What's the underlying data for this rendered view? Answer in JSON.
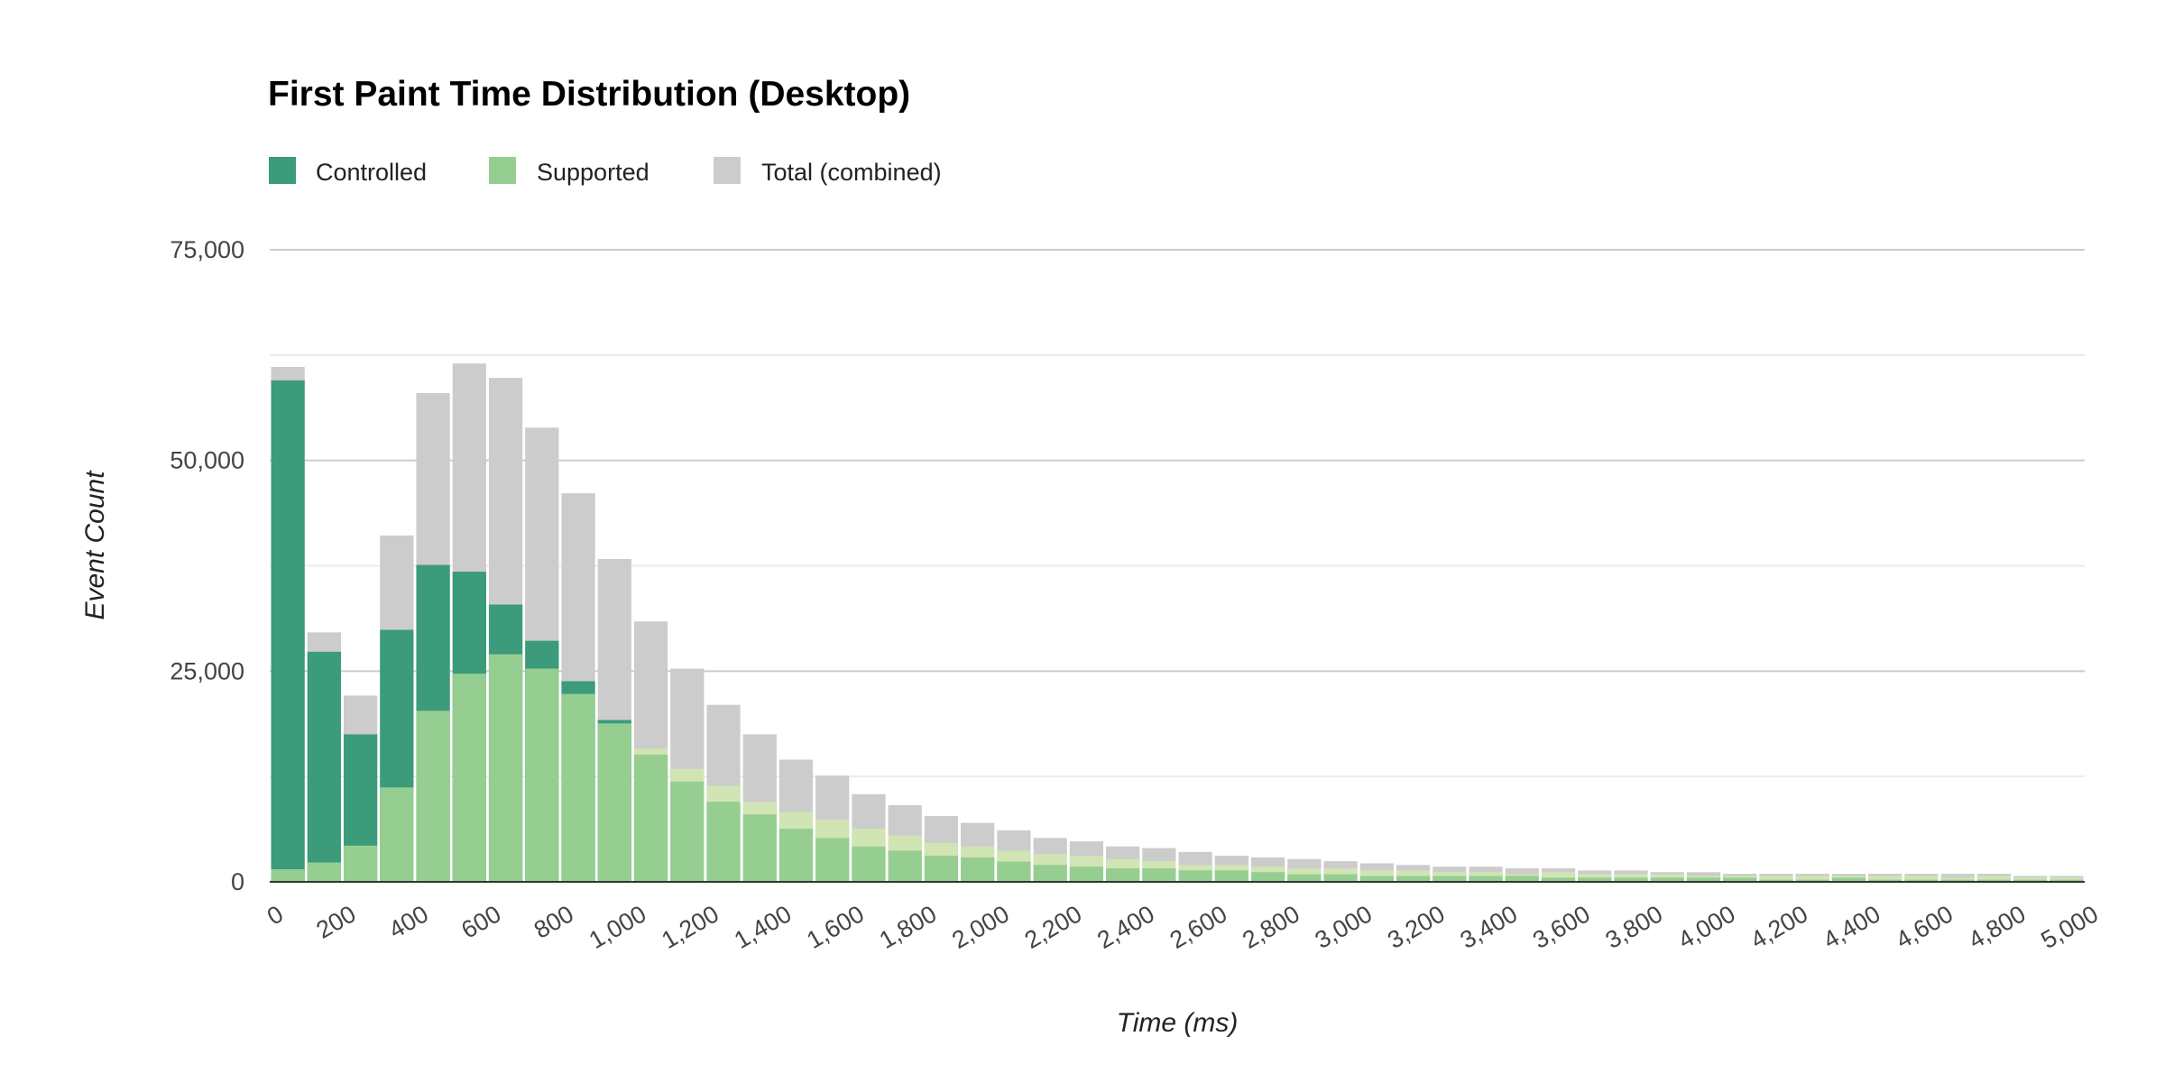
{
  "chart_data": {
    "type": "bar",
    "mode": "overlapping",
    "title": "First Paint Time Distribution (Desktop)",
    "xlabel": "Time (ms)",
    "ylabel": "Event Count",
    "bin_width": 100,
    "xlim": [
      0,
      5000
    ],
    "ylim": [
      0,
      75000
    ],
    "x_ticks": [
      "0",
      "200",
      "400",
      "600",
      "800",
      "1,000",
      "1,200",
      "1,400",
      "1,600",
      "1,800",
      "2,000",
      "2,200",
      "2,400",
      "2,600",
      "2,800",
      "3,000",
      "3,200",
      "3,400",
      "3,600",
      "3,800",
      "4,000",
      "4,200",
      "4,400",
      "4,600",
      "4,800",
      "5,000"
    ],
    "y_ticks": [
      "0",
      "25,000",
      "50,000",
      "75,000"
    ],
    "y_tick_values": [
      0,
      25000,
      50000,
      75000
    ],
    "grid": true,
    "legend_position": "top-left",
    "colors": {
      "controlled": "#3b9b7b",
      "supported": "#96ce91",
      "total": "#cccccc",
      "pale": "#d1e4b4"
    },
    "legend": [
      "Controlled",
      "Supported",
      "Total (combined)"
    ],
    "x": [
      0,
      100,
      200,
      300,
      400,
      500,
      600,
      700,
      800,
      900,
      1000,
      1100,
      1200,
      1300,
      1400,
      1500,
      1600,
      1700,
      1800,
      1900,
      2000,
      2100,
      2200,
      2300,
      2400,
      2500,
      2600,
      2700,
      2800,
      2900,
      3000,
      3100,
      3200,
      3300,
      3400,
      3500,
      3600,
      3700,
      3800,
      3900,
      4000,
      4100,
      4200,
      4300,
      4400,
      4500,
      4600,
      4700,
      4800,
      4900
    ],
    "series": [
      {
        "name": "Total (combined)",
        "key": "total",
        "values": [
          61100,
          29600,
          22100,
          41100,
          58000,
          61500,
          59800,
          53900,
          46100,
          38300,
          30900,
          25300,
          21000,
          17500,
          14500,
          12600,
          10400,
          9100,
          7800,
          7000,
          6100,
          5200,
          4800,
          4200,
          4000,
          3550,
          3100,
          2900,
          2700,
          2450,
          2200,
          2000,
          1800,
          1800,
          1600,
          1600,
          1350,
          1350,
          1150,
          1150,
          950,
          950,
          950,
          950,
          950,
          950,
          950,
          950,
          700,
          700
        ]
      },
      {
        "name": "Controlled",
        "key": "controlled",
        "values": [
          59500,
          27300,
          17500,
          29900,
          37600,
          36800,
          32900,
          28600,
          23800,
          19200,
          null,
          null,
          null,
          null,
          null,
          null,
          null,
          null,
          null,
          null,
          null,
          null,
          null,
          null,
          null,
          null,
          null,
          null,
          null,
          null,
          null,
          null,
          null,
          null,
          null,
          null,
          null,
          null,
          null,
          null,
          null,
          null,
          null,
          null,
          null,
          null,
          null,
          null,
          null,
          null
        ]
      },
      {
        "key": "pale",
        "values": [
          null,
          null,
          null,
          null,
          null,
          null,
          null,
          null,
          null,
          null,
          15800,
          13400,
          11400,
          9500,
          8300,
          7400,
          6300,
          5500,
          4600,
          4200,
          3700,
          3300,
          3100,
          2700,
          2450,
          2000,
          2000,
          1800,
          1600,
          1600,
          1350,
          1350,
          1150,
          1150,
          900,
          1150,
          900,
          900,
          900,
          700,
          700,
          700,
          700,
          700,
          700,
          700,
          500,
          700,
          500,
          500
        ]
      },
      {
        "name": "Supported",
        "key": "supported",
        "values": [
          1500,
          2300,
          4300,
          11200,
          20300,
          24700,
          27000,
          25300,
          22300,
          18800,
          15100,
          11900,
          9500,
          8000,
          6300,
          5200,
          4200,
          3700,
          3100,
          2900,
          2400,
          2000,
          1800,
          1600,
          1600,
          1350,
          1350,
          1150,
          900,
          900,
          700,
          700,
          700,
          700,
          700,
          500,
          500,
          500,
          500,
          500,
          500,
          250,
          250,
          500,
          250,
          250,
          250,
          250,
          250,
          250
        ]
      }
    ]
  }
}
